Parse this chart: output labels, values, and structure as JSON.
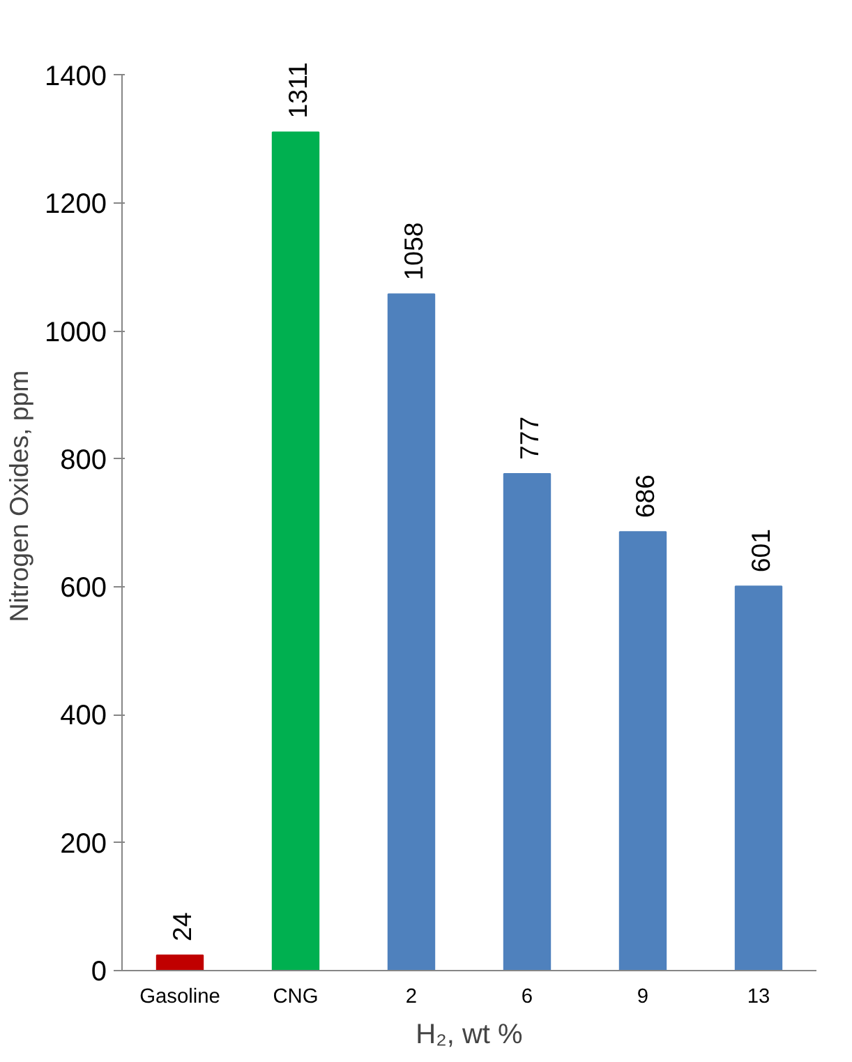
{
  "chart_data": {
    "type": "bar",
    "categories": [
      "Gasoline",
      "CNG",
      "2",
      "6",
      "9",
      "13"
    ],
    "values": [
      24,
      1311,
      1058,
      777,
      686,
      601
    ],
    "colors": [
      "#c00000",
      "#00b050",
      "#4f81bd",
      "#4f81bd",
      "#4f81bd",
      "#4f81bd"
    ],
    "xlabel": "H₂, wt %",
    "ylabel": "Nitrogen Oxides, ppm",
    "ylim": [
      0,
      1400
    ],
    "yticks": [
      0,
      200,
      400,
      600,
      800,
      1000,
      1200,
      1400
    ],
    "data_labels": true,
    "grid": false
  }
}
